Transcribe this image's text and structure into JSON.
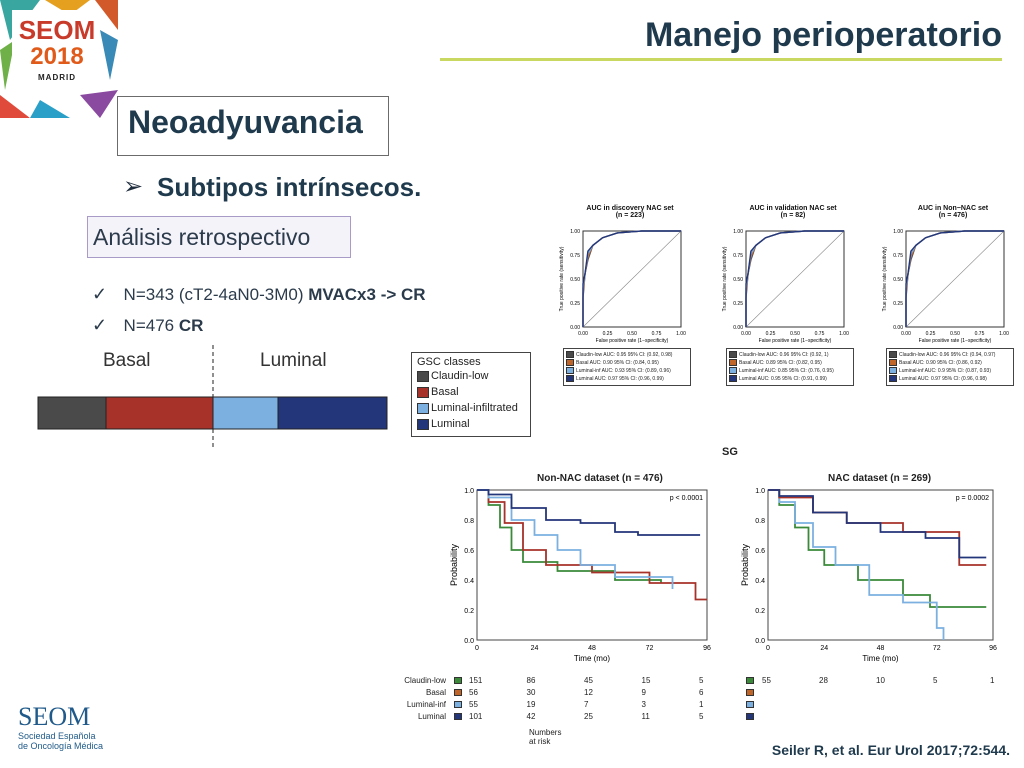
{
  "logo": {
    "brand": "SEOM",
    "year": "2018",
    "city": "MADRID"
  },
  "title": "Manejo perioperatorio",
  "section": "Neoadyuvancia",
  "bullet": "Subtipos intrínsecos.",
  "retro": "Análisis retrospectivo",
  "checks": [
    {
      "prefix": "N=343 (cT2-4aN0-3M0) ",
      "bold": "MVACx3 -> CR"
    },
    {
      "prefix": "N=476 ",
      "bold": "CR"
    }
  ],
  "gsc": {
    "basal_label": "Basal",
    "luminal_label": "Luminal",
    "legend_title": "GSC classes",
    "classes": [
      {
        "name": "Claudin-low",
        "color": "#4a4a4a"
      },
      {
        "name": "Basal",
        "color": "#a6322a"
      },
      {
        "name": "Luminal-infiltrated",
        "color": "#7bb0e0"
      },
      {
        "name": "Luminal",
        "color": "#24367a"
      }
    ]
  },
  "roc": {
    "x_label": "False positive rate (1−specificity)",
    "y_label": "True positive rate (sensitivity)",
    "ticks": [
      "0.00",
      "0.25",
      "0.50",
      "0.75",
      "1.00"
    ],
    "panels": [
      {
        "title": "AUC in discovery NAC set",
        "n": "(n = 223)",
        "legend": [
          "Claudin-low AUC: 0.95 95% CI: (0.92, 0.98)",
          "Basal AUC: 0.90 95% CI: (0.84, 0.95)",
          "Luminal-inf AUC: 0.93 95% CI: (0.89, 0.96)",
          "Luminal AUC: 0.97 95% CI: (0.96, 0.99)"
        ]
      },
      {
        "title": "AUC in validation NAC set",
        "n": "(n = 82)",
        "legend": [
          "Claudin-low AUC: 0.96 95% CI: (0.92, 1)",
          "Basal AUC: 0.89 95% CI: (0.82, 0.95)",
          "Luminal-inf AUC: 0.85 95% CI: (0.76, 0.95)",
          "Luminal AUC: 0.95 95% CI: (0.91, 0.99)"
        ]
      },
      {
        "title": "AUC in Non−NAC set",
        "n": "(n = 476)",
        "legend": [
          "Claudin-low AUC: 0.96 95% CI: (0.94, 0.97)",
          "Basal AUC: 0.90 95% CI: (0.86, 0.92)",
          "Luminal-inf AUC: 0.9 95% CI: (0.87, 0.93)",
          "Luminal AUC: 0.97 95% CI: (0.96, 0.98)"
        ]
      }
    ]
  },
  "km": {
    "sg": "SG",
    "y_label": "Probability",
    "x_label": "Time (mo)",
    "yticks": [
      "0.0",
      "0.2",
      "0.4",
      "0.6",
      "0.8",
      "1.0"
    ],
    "xticks": [
      "0",
      "24",
      "48",
      "72",
      "96"
    ],
    "left": {
      "title": "Non-NAC dataset (n = 476)",
      "p": "p < 0.0001"
    },
    "right": {
      "title": "NAC dataset (n = 269)",
      "p": "p = 0.0002"
    },
    "risk_label": "Numbers at risk",
    "risk_rows": [
      {
        "name": "Claudin-low",
        "color": "#3a8a3a",
        "vals": [
          "151",
          "86",
          "45",
          "15",
          "5"
        ],
        "right": [
          "55",
          "28",
          "10",
          "5",
          "1"
        ]
      },
      {
        "name": "Basal",
        "color": "#c0652a",
        "vals": [
          "56",
          "30",
          "12",
          "9",
          "6"
        ],
        "right": []
      },
      {
        "name": "Luminal-inf",
        "color": "#7bb0e0",
        "vals": [
          "55",
          "19",
          "7",
          "3",
          "1"
        ],
        "right": []
      },
      {
        "name": "Luminal",
        "color": "#24367a",
        "vals": [
          "101",
          "42",
          "25",
          "11",
          "5"
        ],
        "right": []
      }
    ]
  },
  "citation": "Seiler R, et al. Eur Urol 2017;72:544.",
  "footer": {
    "brand": "SEOM",
    "sub1": "Sociedad Española",
    "sub2": "de Oncología Médica"
  }
}
